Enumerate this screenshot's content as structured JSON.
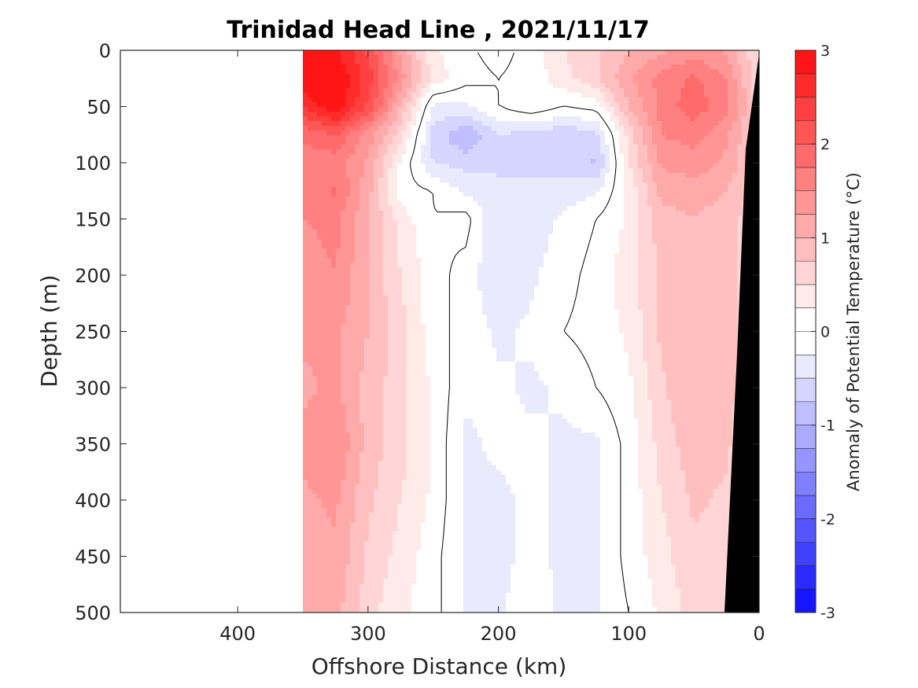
{
  "chart_data": {
    "type": "heatmap",
    "title": "Trinidad Head Line , 2021/11/17",
    "xlabel": "Offshore Distance (km)",
    "ylabel": "Depth (m)",
    "colorbar_label": "Anomaly of Potential Temperature (°C)",
    "xlim": [
      490,
      0
    ],
    "ylim": [
      0,
      500
    ],
    "x_ticks": [
      400,
      300,
      200,
      100,
      0
    ],
    "y_ticks": [
      0,
      50,
      100,
      150,
      200,
      250,
      300,
      350,
      400,
      450,
      500
    ],
    "clim": [
      -3,
      3
    ],
    "colorbar_ticks": [
      3,
      2,
      1,
      0,
      -1,
      -2,
      -3
    ],
    "contour_levels": [
      -3.0,
      -2.75,
      -2.5,
      -2.25,
      -2.0,
      -1.75,
      -1.5,
      -1.25,
      -1.0,
      -0.75,
      -0.5,
      -0.25,
      0,
      0.25,
      0.5,
      0.75,
      1.0,
      1.25,
      1.5,
      1.75,
      2.0,
      2.25,
      2.5,
      2.75,
      3.0
    ],
    "data_extent_km": [
      350,
      0
    ],
    "bathymetry_color": "#000000",
    "colormap": "blue-white-red",
    "depth_levels": [
      0,
      25,
      50,
      75,
      100,
      125,
      150,
      200,
      250,
      300,
      350,
      400,
      450,
      500
    ],
    "distances": [
      350,
      325,
      300,
      275,
      250,
      225,
      200,
      175,
      150,
      125,
      100,
      75,
      50,
      25,
      0
    ],
    "anomaly": [
      [
        3.0,
        2.8,
        2.2,
        1.2,
        0.3,
        0.05,
        -0.1,
        0.1,
        0.5,
        0.7,
        1.0,
        1.2,
        1.4,
        1.2,
        0.5
      ],
      [
        3.0,
        3.0,
        2.4,
        1.4,
        0.4,
        0.1,
        0.0,
        0.1,
        0.4,
        0.7,
        1.2,
        1.6,
        1.8,
        1.5,
        0.5
      ],
      [
        2.5,
        3.0,
        2.2,
        1.0,
        -0.3,
        -0.3,
        0.0,
        0.2,
        0.0,
        0.1,
        1.0,
        1.6,
        1.9,
        1.6,
        0.6
      ],
      [
        1.8,
        2.0,
        1.4,
        0.6,
        -0.6,
        -1.0,
        -0.5,
        -0.6,
        -0.7,
        -0.6,
        0.6,
        1.5,
        1.6,
        1.3,
        0.6
      ],
      [
        1.6,
        1.6,
        1.2,
        0.2,
        -0.5,
        -0.6,
        -0.5,
        -0.6,
        -0.6,
        -0.8,
        0.5,
        1.3,
        1.4,
        1.2,
        0.6
      ],
      [
        1.5,
        1.8,
        1.1,
        0.1,
        0.0,
        -0.3,
        -0.5,
        -0.4,
        -0.4,
        -0.3,
        0.3,
        1.1,
        1.1,
        1.0,
        0.6
      ],
      [
        1.5,
        1.6,
        1.0,
        0.4,
        0.0,
        0.1,
        -0.5,
        -0.4,
        -0.2,
        0.0,
        0.3,
        0.9,
        1.0,
        0.9,
        0.5
      ],
      [
        1.3,
        1.5,
        1.0,
        0.5,
        0.1,
        -0.1,
        -0.5,
        -0.3,
        -0.1,
        0.1,
        0.4,
        0.8,
        1.0,
        0.9,
        0.5
      ],
      [
        1.3,
        1.3,
        1.0,
        0.6,
        0.1,
        -0.1,
        -0.3,
        -0.2,
        0.0,
        0.1,
        0.3,
        0.8,
        1.0,
        0.9,
        0.5
      ],
      [
        1.2,
        1.3,
        0.9,
        0.6,
        0.2,
        -0.2,
        -0.2,
        -0.3,
        -0.2,
        0.0,
        0.2,
        0.7,
        1.0,
        0.9,
        0.4
      ],
      [
        1.3,
        1.5,
        0.9,
        0.6,
        0.2,
        -0.3,
        -0.2,
        -0.2,
        -0.3,
        -0.3,
        0.1,
        0.6,
        0.9,
        0.8,
        0.4
      ],
      [
        1.2,
        1.3,
        0.8,
        0.5,
        0.2,
        -0.3,
        -0.3,
        -0.2,
        -0.3,
        -0.3,
        0.1,
        0.5,
        0.8,
        0.7,
        0.3
      ],
      [
        1.1,
        1.2,
        0.7,
        0.4,
        0.1,
        -0.3,
        -0.3,
        -0.2,
        -0.3,
        -0.3,
        0.1,
        0.4,
        0.7,
        0.6,
        0.2
      ],
      [
        1.0,
        1.1,
        0.6,
        0.3,
        0.1,
        -0.3,
        -0.3,
        -0.1,
        -0.3,
        -0.3,
        0.0,
        0.3,
        0.6,
        0.5,
        0.2
      ]
    ]
  }
}
